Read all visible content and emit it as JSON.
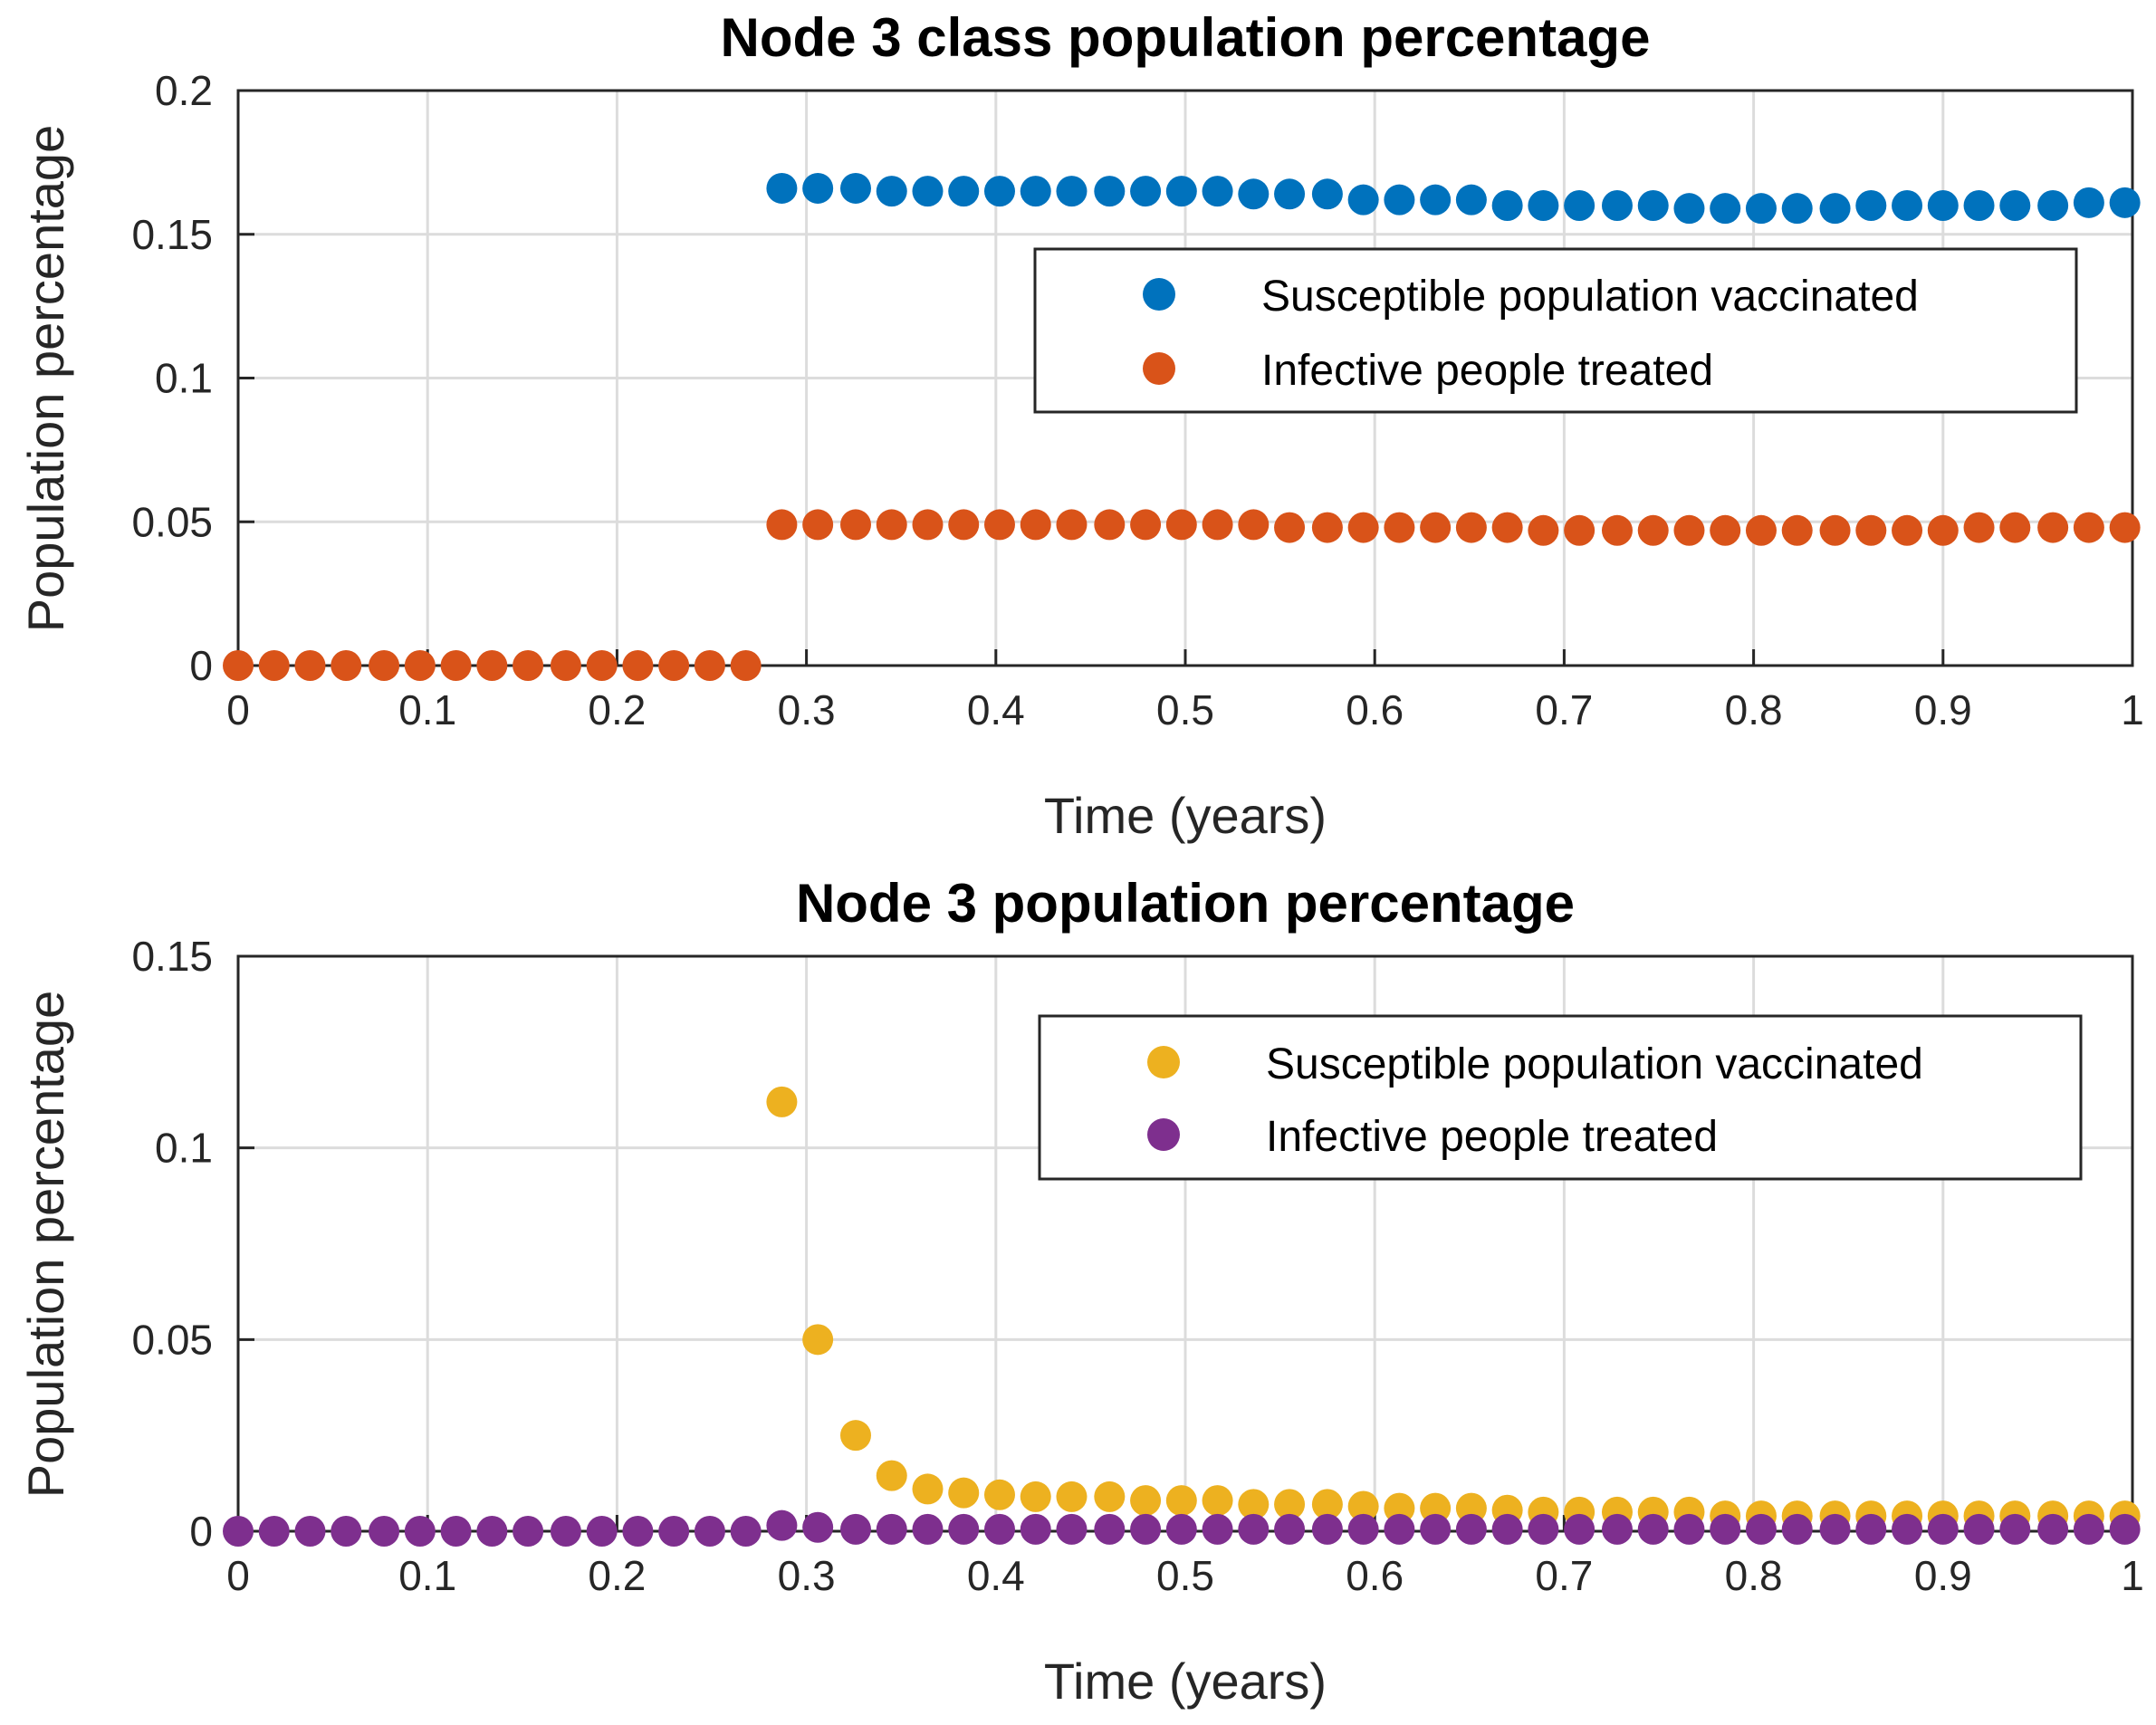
{
  "chart_data": [
    {
      "type": "scatter",
      "title": "Node 3 class population percentage",
      "xlabel": "Time (years)",
      "ylabel": "Population percentage",
      "xlim": [
        0,
        1
      ],
      "ylim": [
        0,
        0.2
      ],
      "xticks": [
        "0",
        "0.1",
        "0.2",
        "0.3",
        "0.4",
        "0.5",
        "0.6",
        "0.7",
        "0.8",
        "0.9",
        "1"
      ],
      "yticks": [
        "0",
        "0.05",
        "0.1",
        "0.15",
        "0.2"
      ],
      "grid": true,
      "legend_position": "top-right",
      "x": [
        0,
        0.019,
        0.038,
        0.057,
        0.077,
        0.096,
        0.115,
        0.134,
        0.153,
        0.173,
        0.192,
        0.211,
        0.23,
        0.249,
        0.268,
        0.287,
        0.306,
        0.326,
        0.345,
        0.364,
        0.383,
        0.402,
        0.421,
        0.44,
        0.46,
        0.479,
        0.498,
        0.517,
        0.536,
        0.555,
        0.575,
        0.594,
        0.613,
        0.632,
        0.651,
        0.67,
        0.689,
        0.708,
        0.728,
        0.747,
        0.766,
        0.785,
        0.804,
        0.823,
        0.843,
        0.862,
        0.881,
        0.9,
        0.919,
        0.938,
        0.958,
        0.977,
        0.996
      ],
      "series": [
        {
          "name": "Susceptible population vaccinated",
          "color": "#0072BD",
          "values": [
            null,
            null,
            null,
            null,
            null,
            null,
            null,
            null,
            null,
            null,
            null,
            null,
            null,
            null,
            null,
            0.166,
            0.166,
            0.166,
            0.165,
            0.165,
            0.165,
            0.165,
            0.165,
            0.165,
            0.165,
            0.165,
            0.165,
            0.165,
            0.164,
            0.164,
            0.164,
            0.162,
            0.162,
            0.162,
            0.162,
            0.16,
            0.16,
            0.16,
            0.16,
            0.16,
            0.159,
            0.159,
            0.159,
            0.159,
            0.159,
            0.16,
            0.16,
            0.16,
            0.16,
            0.16,
            0.16,
            0.161,
            0.161
          ]
        },
        {
          "name": "Infective people treated",
          "color": "#D95319",
          "values": [
            0,
            0,
            0,
            0,
            0,
            0,
            0,
            0,
            0,
            0,
            0,
            0,
            0,
            0,
            0,
            0.049,
            0.049,
            0.049,
            0.049,
            0.049,
            0.049,
            0.049,
            0.049,
            0.049,
            0.049,
            0.049,
            0.049,
            0.049,
            0.049,
            0.048,
            0.048,
            0.048,
            0.048,
            0.048,
            0.048,
            0.048,
            0.047,
            0.047,
            0.047,
            0.047,
            0.047,
            0.047,
            0.047,
            0.047,
            0.047,
            0.047,
            0.047,
            0.047,
            0.048,
            0.048,
            0.048,
            0.048,
            0.048
          ]
        }
      ]
    },
    {
      "type": "scatter",
      "title": "Node 3 population percentage",
      "xlabel": "Time (years)",
      "ylabel": "Population percentage",
      "xlim": [
        0,
        1
      ],
      "ylim": [
        0,
        0.15
      ],
      "xticks": [
        "0",
        "0.1",
        "0.2",
        "0.3",
        "0.4",
        "0.5",
        "0.6",
        "0.7",
        "0.8",
        "0.9",
        "1"
      ],
      "yticks": [
        "0",
        "0.05",
        "0.1",
        "0.15"
      ],
      "grid": true,
      "legend_position": "top-right",
      "x": [
        0,
        0.019,
        0.038,
        0.057,
        0.077,
        0.096,
        0.115,
        0.134,
        0.153,
        0.173,
        0.192,
        0.211,
        0.23,
        0.249,
        0.268,
        0.287,
        0.306,
        0.326,
        0.345,
        0.364,
        0.383,
        0.402,
        0.421,
        0.44,
        0.46,
        0.479,
        0.498,
        0.517,
        0.536,
        0.555,
        0.575,
        0.594,
        0.613,
        0.632,
        0.651,
        0.67,
        0.689,
        0.708,
        0.728,
        0.747,
        0.766,
        0.785,
        0.804,
        0.823,
        0.843,
        0.862,
        0.881,
        0.9,
        0.919,
        0.938,
        0.958,
        0.977,
        0.996
      ],
      "series": [
        {
          "name": "Susceptible population vaccinated",
          "color": "#EDB120",
          "values": [
            null,
            null,
            null,
            null,
            null,
            null,
            null,
            null,
            null,
            null,
            null,
            null,
            null,
            null,
            null,
            0.112,
            0.05,
            0.025,
            0.0145,
            0.011,
            0.01,
            0.0095,
            0.009,
            0.009,
            0.009,
            0.008,
            0.008,
            0.008,
            0.007,
            0.007,
            0.007,
            0.0065,
            0.006,
            0.006,
            0.006,
            0.0055,
            0.005,
            0.005,
            0.005,
            0.005,
            0.005,
            0.004,
            0.004,
            0.004,
            0.004,
            0.004,
            0.004,
            0.004,
            0.004,
            0.004,
            0.004,
            0.004,
            0.004
          ]
        },
        {
          "name": "Infective people treated",
          "color": "#7E2F8E",
          "values": [
            0,
            0,
            0,
            0,
            0,
            0,
            0,
            0,
            0,
            0,
            0,
            0,
            0,
            0,
            0,
            0.0015,
            0.001,
            0.0005,
            0.0005,
            0.0005,
            0.0005,
            0.0005,
            0.0005,
            0.0005,
            0.0005,
            0.0005,
            0.0005,
            0.0005,
            0.0005,
            0.0005,
            0.0005,
            0.0005,
            0.0005,
            0.0005,
            0.0005,
            0.0005,
            0.0005,
            0.0005,
            0.0005,
            0.0005,
            0.0005,
            0.0005,
            0.0005,
            0.0005,
            0.0005,
            0.0005,
            0.0005,
            0.0005,
            0.0005,
            0.0005,
            0.0005,
            0.0005,
            0.0005
          ]
        }
      ]
    }
  ]
}
